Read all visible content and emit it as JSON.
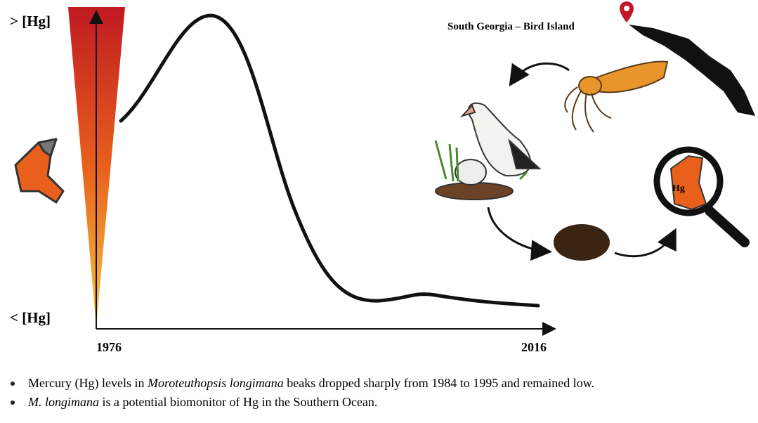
{
  "graph": {
    "top_label": "> [Hg]",
    "bottom_label": "< [Hg]",
    "start_year": "1976",
    "end_year": "2016"
  },
  "map": {
    "location": "South Georgia – Bird Island"
  },
  "magnifier": {
    "label": "Hg"
  },
  "bullets": [
    [
      "Mercury (Hg) levels in ",
      "Moroteuthopsis longimana",
      " beaks dropped sharply from 1984 to 1995 and remained low."
    ],
    [
      "M. longimana",
      " is a potential biomonitor of Hg in the Southern Ocean."
    ]
  ]
}
